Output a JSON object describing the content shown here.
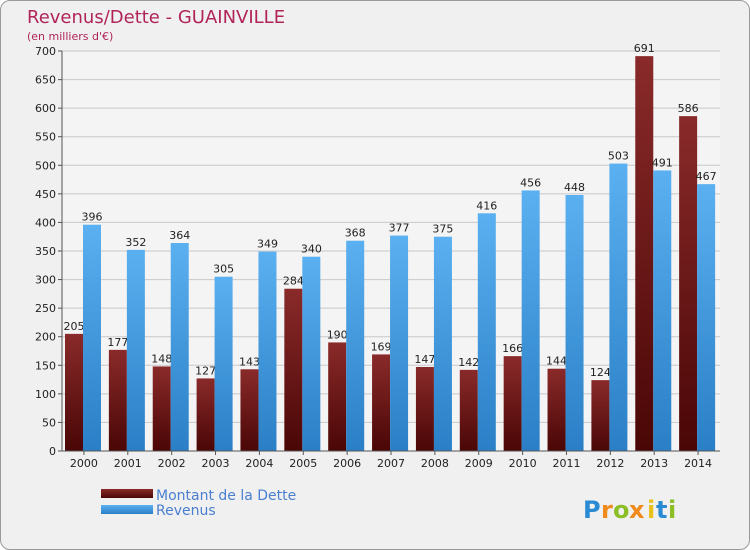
{
  "chart_data": {
    "type": "bar",
    "title": "Revenus/Dette - GUAINVILLE",
    "subtitle": "(en milliers d'€)",
    "categories": [
      "2000",
      "2001",
      "2002",
      "2003",
      "2004",
      "2005",
      "2006",
      "2007",
      "2008",
      "2009",
      "2010",
      "2011",
      "2012",
      "2013",
      "2014"
    ],
    "series": [
      {
        "name": "Montant de la Dette",
        "color": "#7a1a1a",
        "values": [
          205,
          177,
          148,
          127,
          143,
          284,
          190,
          169,
          147,
          142,
          166,
          144,
          124,
          691,
          586
        ]
      },
      {
        "name": "Revenus",
        "color": "#4aa3e8",
        "values": [
          396,
          352,
          364,
          305,
          349,
          340,
          368,
          377,
          375,
          416,
          456,
          448,
          503,
          491,
          467
        ]
      }
    ],
    "ylim": [
      0,
      700
    ],
    "yticks": [
      0,
      50,
      100,
      150,
      200,
      250,
      300,
      350,
      400,
      450,
      500,
      550,
      600,
      650,
      700
    ],
    "grid": true,
    "legend": "bottom-left"
  },
  "brand": {
    "letters": [
      "P",
      "r",
      "o",
      "x",
      "i",
      "t",
      "i"
    ],
    "colors": [
      "#2a8ad4",
      "#f08a1c",
      "#8cbf26",
      "#f08a1c",
      "#e8c21c",
      "#2a8ad4",
      "#8cbf26"
    ]
  }
}
